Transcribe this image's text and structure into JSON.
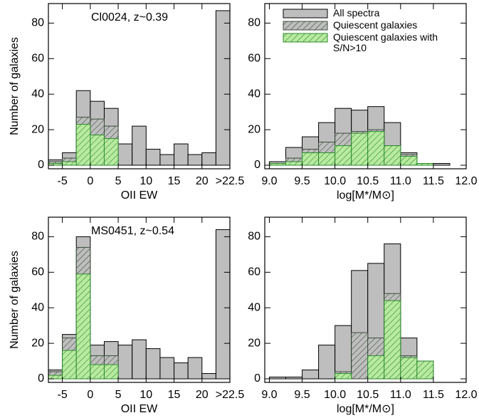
{
  "chart_data": [
    {
      "type": "histogram",
      "annotation": "Cl0024, z~0.39",
      "xlabel": "OII EW",
      "ylabel": "Number of galaxies",
      "bins": [
        -7.5,
        -5,
        -2.5,
        0,
        2.5,
        5,
        7.5,
        10,
        12.5,
        15,
        17.5,
        20,
        22.5,
        25
      ],
      "series": [
        {
          "name": "All spectra",
          "color": "#bebebe",
          "edgecolor": "#000000",
          "values": [
            3,
            7,
            42,
            36,
            32,
            12,
            22,
            9,
            6,
            12,
            6,
            7,
            87
          ]
        },
        {
          "name": "Quiescent galaxies",
          "color": "#bebebe",
          "edgecolor": "#3c4c3c",
          "hatch": true,
          "values": [
            2,
            4,
            27,
            26,
            22,
            0,
            0,
            0,
            0,
            0,
            0,
            0,
            0
          ]
        },
        {
          "name": "Quiescent galaxies with\nS/N>10",
          "color": "#b8eaa0",
          "edgecolor": "#2e8b2e",
          "hatch": true,
          "values": [
            1,
            2,
            23,
            17,
            15,
            0,
            0,
            0,
            0,
            0,
            0,
            0,
            0
          ]
        }
      ],
      "xlim": [
        -7.5,
        25
      ],
      "ylim": [
        -2,
        91
      ],
      "xticks": [
        -5,
        0,
        5,
        10,
        15,
        20,
        {
          "value": 25,
          "label": ">22.5"
        }
      ],
      "yticks": [
        0,
        20,
        40,
        60,
        80
      ]
    },
    {
      "type": "histogram",
      "xlabel": "log[M*/M⊙]",
      "legend": "upper left",
      "bins": [
        9.0,
        9.25,
        9.5,
        9.75,
        10.0,
        10.25,
        10.5,
        10.75,
        11.0,
        11.25,
        11.5,
        11.75,
        12.0
      ],
      "series": [
        {
          "name": "All spectra",
          "color": "#bebebe",
          "edgecolor": "#000000",
          "values": [
            2,
            10,
            16,
            24,
            32,
            31,
            33,
            24,
            7,
            1,
            1,
            0
          ]
        },
        {
          "name": "Quiescent galaxies",
          "color": "#bebebe",
          "edgecolor": "#3c4c3c",
          "hatch": true,
          "values": [
            1,
            4,
            9,
            13,
            18,
            19,
            20,
            11,
            6,
            1,
            0,
            0
          ]
        },
        {
          "name": "Quiescent galaxies with\nS/N>10",
          "color": "#b8eaa0",
          "edgecolor": "#2e8b2e",
          "hatch": true,
          "values": [
            1,
            2,
            7,
            7,
            11,
            18,
            19,
            11,
            5,
            1,
            0,
            0
          ]
        }
      ],
      "xlim": [
        8.93,
        12.0
      ],
      "ylim": [
        -2,
        91
      ],
      "xticks": [
        {
          "value": 9,
          "label": "9.0"
        },
        9.5,
        {
          "value": 10,
          "label": "10.0"
        },
        10.5,
        {
          "value": 11,
          "label": "11.0"
        },
        11.5,
        {
          "value": 12,
          "label": "12.0"
        }
      ],
      "yticks": [
        0,
        20,
        40,
        60,
        80
      ]
    },
    {
      "type": "histogram",
      "annotation": "MS0451, z~0.54",
      "xlabel": "OII EW",
      "ylabel": "Number of galaxies",
      "bins": [
        -7.5,
        -5,
        -2.5,
        0,
        2.5,
        5,
        7.5,
        10,
        12.5,
        15,
        17.5,
        20,
        22.5,
        25
      ],
      "series": [
        {
          "name": "All spectra",
          "color": "#bebebe",
          "edgecolor": "#000000",
          "values": [
            5,
            25,
            80,
            19,
            21,
            19,
            22,
            17,
            12,
            9,
            12,
            3,
            84
          ]
        },
        {
          "name": "Quiescent galaxies",
          "color": "#bebebe",
          "edgecolor": "#3c4c3c",
          "hatch": true,
          "values": [
            4,
            23,
            74,
            13,
            13,
            0,
            0,
            0,
            0,
            0,
            0,
            0,
            0
          ]
        },
        {
          "name": "Quiescent galaxies with\nS/N>10",
          "color": "#b8eaa0",
          "edgecolor": "#2e8b2e",
          "hatch": true,
          "values": [
            2,
            16,
            59,
            8,
            8,
            0,
            0,
            0,
            0,
            0,
            0,
            0,
            0
          ]
        }
      ],
      "xlim": [
        -7.5,
        25
      ],
      "ylim": [
        -2,
        91
      ],
      "xticks": [
        -5,
        0,
        5,
        10,
        15,
        20,
        {
          "value": 25,
          "label": ">22.5"
        }
      ],
      "yticks": [
        0,
        20,
        40,
        60,
        80
      ]
    },
    {
      "type": "histogram",
      "xlabel": "log[M*/M⊙]",
      "bins": [
        9.0,
        9.25,
        9.5,
        9.75,
        10.0,
        10.25,
        10.5,
        10.75,
        11.0,
        11.25,
        11.5,
        11.75,
        12.0
      ],
      "series": [
        {
          "name": "All spectra",
          "color": "#bebebe",
          "edgecolor": "#000000",
          "values": [
            1,
            1,
            5,
            19,
            30,
            61,
            65,
            76,
            23,
            10,
            0,
            0
          ]
        },
        {
          "name": "Quiescent galaxies",
          "color": "#bebebe",
          "edgecolor": "#3c4c3c",
          "hatch": true,
          "values": [
            0,
            0,
            0,
            0,
            4,
            26,
            23,
            48,
            13,
            10,
            0,
            0
          ]
        },
        {
          "name": "Quiescent galaxies with\nS/N>10",
          "color": "#b8eaa0",
          "edgecolor": "#2e8b2e",
          "hatch": true,
          "values": [
            0,
            0,
            0,
            0,
            3,
            0,
            13,
            44,
            12,
            10,
            0,
            0
          ]
        }
      ],
      "xlim": [
        8.93,
        12.0
      ],
      "ylim": [
        -2,
        91
      ],
      "xticks": [
        {
          "value": 9,
          "label": "9.0"
        },
        9.5,
        {
          "value": 10,
          "label": "10.0"
        },
        10.5,
        {
          "value": 11,
          "label": "11.0"
        },
        11.5,
        {
          "value": 12,
          "label": "12.0"
        }
      ],
      "yticks": [
        0,
        20,
        40,
        60,
        80
      ]
    }
  ]
}
